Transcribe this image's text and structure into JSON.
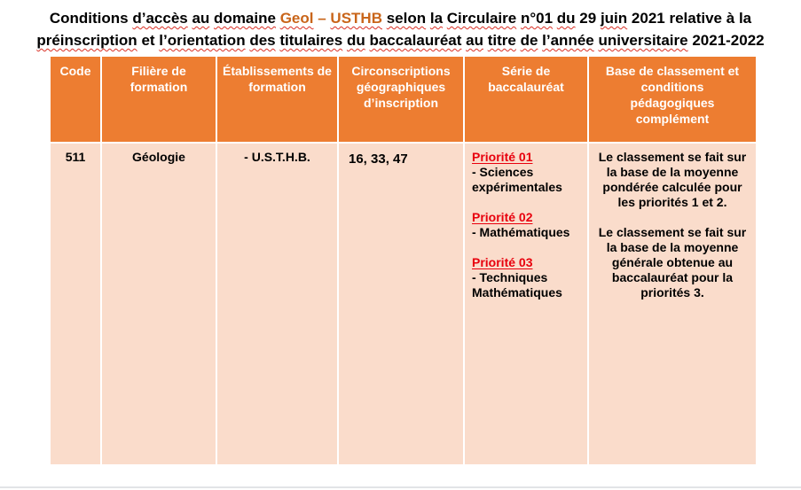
{
  "colors": {
    "header_bg": "#ED7D31",
    "row_bg": "#FADCCB",
    "title_orange": "#C9651A",
    "priority_red": "#E8000D",
    "squiggle_red": "#D93025",
    "bottom_edge": "#E2E4E7"
  },
  "title": {
    "full_text": "Conditions d’accès au domaine Geol – USTHB selon la Circulaire n°01 du 29 juin 2021 relative à la préinscription et l’orientation des titulaires du baccalauréat au titre de l’année universitaire 2021-2022",
    "lines": [
      [
        {
          "t": "Conditions"
        },
        {
          "t": "d’accès",
          "w": 1
        },
        {
          "t": "au",
          "w": 1
        },
        {
          "t": "domaine",
          "w": 1
        },
        {
          "t": "Geol",
          "w": 1,
          "o": 1
        },
        {
          "t": "–",
          "o": 1
        },
        {
          "t": "USTHB",
          "w": 1,
          "o": 1
        },
        {
          "t": "selon",
          "w": 1
        },
        {
          "t": "la",
          "w": 1
        },
        {
          "t": "Circulaire",
          "w": 1
        },
        {
          "t": "n°01",
          "w": 1
        },
        {
          "t": "du",
          "w": 1
        },
        {
          "t": "29"
        },
        {
          "t": "juin",
          "w": 1
        },
        {
          "t": "2021"
        },
        {
          "t": "relative"
        },
        {
          "t": "à"
        },
        {
          "t": "la"
        }
      ],
      [
        {
          "t": "préinscription",
          "w": 1
        },
        {
          "t": "et"
        },
        {
          "t": "l’orientation",
          "w": 1
        },
        {
          "t": "des",
          "w": 1
        },
        {
          "t": "titulaires",
          "w": 1
        },
        {
          "t": "du",
          "w": 1
        },
        {
          "t": "baccalauréat",
          "w": 1
        },
        {
          "t": "au",
          "w": 1
        },
        {
          "t": "titre",
          "w": 1
        },
        {
          "t": "de",
          "w": 1
        },
        {
          "t": "l’année",
          "w": 1
        },
        {
          "t": "universitaire",
          "w": 1
        },
        {
          "t": "2021-2022"
        }
      ]
    ]
  },
  "table": {
    "headers": [
      "Code",
      "Filière de formation",
      "Établissements de formation",
      "Circonscriptions géographiques d’inscription",
      "Série de baccalauréat",
      "Base de classement et conditions pédagogiques complément"
    ],
    "row": {
      "code": "511",
      "filiere": "Géologie",
      "etablissements": "- U.S.T.H.B.",
      "circonscriptions": "16, 33, 47",
      "serie": [
        {
          "label": "Priorité 01",
          "item": "- Sciences expérimentales"
        },
        {
          "label": "Priorité 02",
          "item": "- Mathématiques"
        },
        {
          "label": "Priorité 03",
          "item": "- Techniques Mathématiques"
        }
      ],
      "base": [
        "Le classement se fait sur la base de la moyenne pondérée calculée pour les priorités 1 et 2.",
        "Le classement se fait sur la base de la moyenne générale obtenue au baccalauréat pour la priorités 3."
      ]
    }
  }
}
